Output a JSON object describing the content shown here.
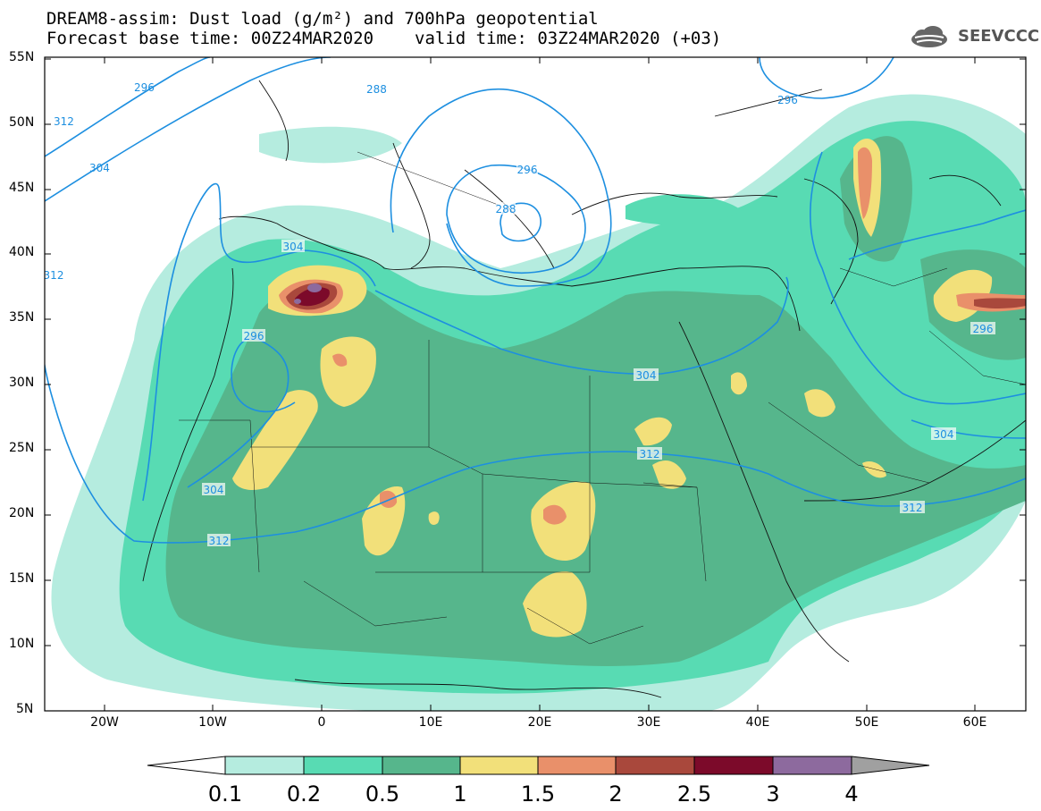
{
  "header": {
    "title_line1": "DREAM8-assim: Dust load (g/m²) and 700hPa geopotential",
    "forecast_base": "Forecast base time: 00Z24MAR2020",
    "valid_time": "valid time: 03Z24MAR2020 (+03)",
    "logo_text": "SEEVCCC",
    "logo_icon": "cloud-icon"
  },
  "map": {
    "lat_labels": [
      "55N",
      "50N",
      "45N",
      "40N",
      "35N",
      "30N",
      "25N",
      "20N",
      "15N",
      "10N",
      "5N"
    ],
    "lon_labels": [
      "20W",
      "10W",
      "0",
      "10E",
      "20E",
      "30E",
      "40E",
      "50E",
      "60E"
    ],
    "contour_color": "#1d8fe0",
    "contour_labels": [
      "288",
      "296",
      "304",
      "312",
      "312",
      "304",
      "296",
      "288",
      "296",
      "304",
      "312",
      "304",
      "312",
      "296",
      "304",
      "312",
      "296"
    ]
  },
  "colorbar": {
    "labels": [
      "0.1",
      "0.2",
      "0.5",
      "1",
      "1.5",
      "2",
      "2.5",
      "3",
      "4"
    ],
    "colors": [
      "#ffffff",
      "#b5ecdf",
      "#58dbb3",
      "#56b68c",
      "#f2e07a",
      "#e9906a",
      "#a9483c",
      "#7c0a2a",
      "#8d6a9e",
      "#a0a0a0"
    ]
  }
}
